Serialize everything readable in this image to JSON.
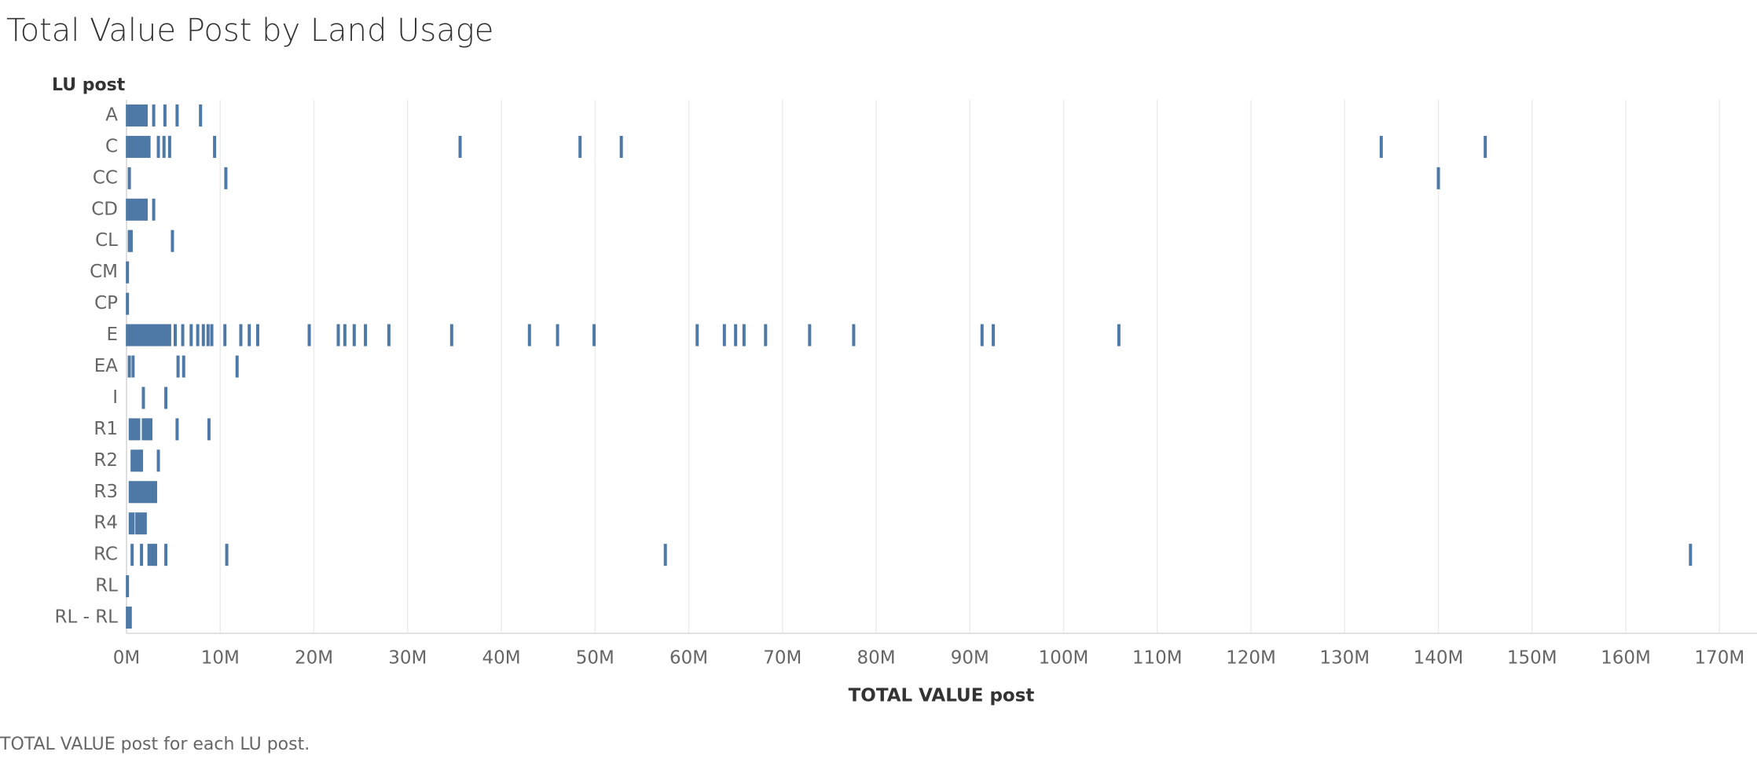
{
  "chart_data": {
    "type": "strip",
    "title": "Total Value Post by Land Usage",
    "row_label": "LU post",
    "x_label": "TOTAL VALUE post",
    "caption": "TOTAL VALUE post for each LU post.",
    "color": "#4e79a7",
    "grid": true,
    "categories": [
      "A",
      "C",
      "CC",
      "CD",
      "CL",
      "CM",
      "CP",
      "E",
      "EA",
      "I",
      "R1",
      "R2",
      "R3",
      "R4",
      "RC",
      "RL",
      "RL - RL"
    ],
    "values": [
      [
        0.1,
        0.4,
        0.7,
        1.0,
        1.3,
        1.6,
        1.9,
        2.1,
        2.9,
        4.1,
        5.4,
        7.9
      ],
      [
        0.1,
        0.4,
        0.7,
        1.0,
        1.3,
        1.6,
        1.9,
        2.2,
        2.4,
        3.4,
        4.0,
        4.6,
        9.4,
        35.6,
        48.4,
        52.8,
        133.9,
        145.0
      ],
      [
        0.3,
        10.6,
        140.0
      ],
      [
        0.1,
        0.4,
        0.7,
        1.0,
        1.3,
        1.6,
        1.9,
        2.1,
        2.9
      ],
      [
        0.3,
        0.5,
        4.9
      ],
      [
        0.1
      ],
      [
        0.1
      ],
      [
        0.1,
        0.4,
        0.7,
        1.0,
        1.3,
        1.6,
        1.9,
        2.2,
        2.5,
        2.8,
        3.1,
        3.4,
        3.7,
        4.0,
        4.3,
        4.6,
        5.2,
        6.0,
        6.9,
        7.6,
        8.2,
        8.7,
        9.1,
        10.5,
        12.2,
        13.1,
        14.0,
        19.5,
        22.6,
        23.3,
        24.3,
        25.5,
        28.0,
        34.7,
        43.0,
        46.0,
        49.9,
        60.9,
        63.8,
        65.0,
        65.9,
        68.2,
        72.9,
        77.6,
        91.3,
        92.5,
        105.9
      ],
      [
        0.3,
        0.7,
        5.5,
        6.1,
        11.8
      ],
      [
        1.8,
        4.2
      ],
      [
        0.4,
        0.7,
        1.0,
        1.3,
        1.8,
        2.1,
        2.4,
        2.6,
        5.4,
        8.8
      ],
      [
        0.6,
        0.9,
        1.2,
        1.5,
        1.6,
        3.4
      ],
      [
        0.4,
        0.7,
        1.0,
        1.3,
        1.6,
        1.9,
        2.2,
        2.5,
        2.8,
        3.1
      ],
      [
        0.4,
        0.7,
        1.1,
        1.4,
        1.7,
        2.0
      ],
      [
        0.6,
        1.6,
        2.4,
        2.7,
        3.0,
        3.1,
        4.2,
        10.7,
        57.5,
        166.9
      ],
      [
        0.1
      ],
      [
        0.1,
        0.4
      ]
    ],
    "xlim": [
      0,
      174
    ],
    "xticks": [
      {
        "value": 0,
        "label": "0M"
      },
      {
        "value": 10,
        "label": "10M"
      },
      {
        "value": 20,
        "label": "20M"
      },
      {
        "value": 30,
        "label": "30M"
      },
      {
        "value": 40,
        "label": "40M"
      },
      {
        "value": 50,
        "label": "50M"
      },
      {
        "value": 60,
        "label": "60M"
      },
      {
        "value": 70,
        "label": "70M"
      },
      {
        "value": 80,
        "label": "80M"
      },
      {
        "value": 90,
        "label": "90M"
      },
      {
        "value": 100,
        "label": "100M"
      },
      {
        "value": 110,
        "label": "110M"
      },
      {
        "value": 120,
        "label": "120M"
      },
      {
        "value": 130,
        "label": "130M"
      },
      {
        "value": 140,
        "label": "140M"
      },
      {
        "value": 150,
        "label": "150M"
      },
      {
        "value": 160,
        "label": "160M"
      },
      {
        "value": 170,
        "label": "170M"
      }
    ]
  }
}
